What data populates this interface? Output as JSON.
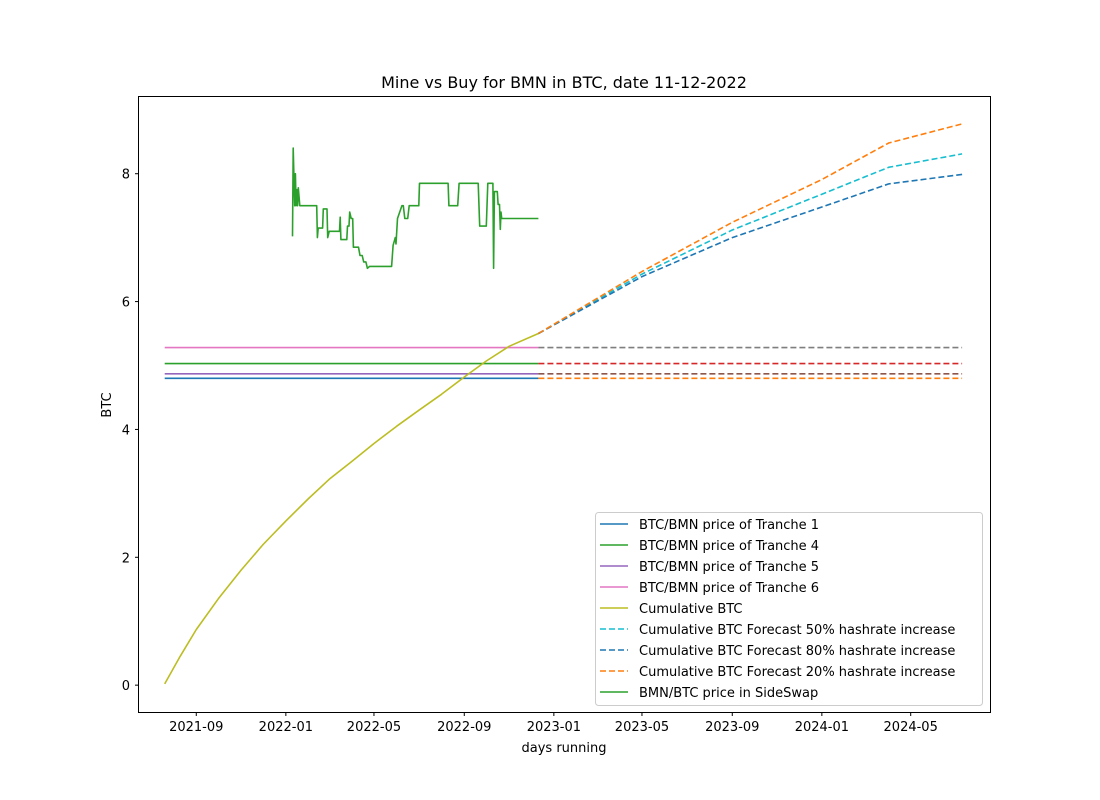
{
  "chart_data": {
    "type": "line",
    "title": "Mine vs Buy for BMN in BTC, date 11-12-2022",
    "xlabel": "days running",
    "ylabel": "BTC",
    "xlim": [
      "2021-06-15",
      "2024-08-17"
    ],
    "ylim": [
      -0.42,
      9.2
    ],
    "x_ticks": [
      "2021-09",
      "2022-01",
      "2022-05",
      "2022-09",
      "2023-01",
      "2023-05",
      "2023-09",
      "2024-01",
      "2024-05"
    ],
    "y_ticks": [
      0,
      2,
      4,
      6,
      8
    ],
    "grid": false,
    "legend_position": "bottom-right",
    "legend": [
      "BTC/BMN price of Tranche 1",
      "BTC/BMN price of Tranche 4",
      "BTC/BMN price of Tranche 5",
      "BTC/BMN price of Tranche 6",
      "Cumulative BTC",
      "Cumulative BTC Forecast 50% hashrate increase",
      "Cumulative BTC Forecast 80% hashrate increase",
      "Cumulative BTC Forecast 20% hashrate increase",
      "BMN/BTC price in SideSwap"
    ],
    "series": [
      {
        "name": "BTC/BMN price of Tranche 1",
        "color": "#1f77b4",
        "style": "solid",
        "legend": true,
        "points": [
          [
            "2021-07-20",
            4.8
          ],
          [
            "2022-12-11",
            4.8
          ]
        ]
      },
      {
        "name": "BTC/BMN price of Tranche 4",
        "color": "#2ca02c",
        "style": "solid",
        "legend": true,
        "points": [
          [
            "2021-07-20",
            5.03
          ],
          [
            "2022-12-11",
            5.03
          ]
        ]
      },
      {
        "name": "BTC/BMN price of Tranche 5",
        "color": "#9467bd",
        "style": "solid",
        "legend": true,
        "points": [
          [
            "2021-07-20",
            4.87
          ],
          [
            "2022-12-11",
            4.87
          ]
        ]
      },
      {
        "name": "BTC/BMN price of Tranche 6",
        "color": "#e377c2",
        "style": "solid",
        "legend": true,
        "points": [
          [
            "2021-07-20",
            5.28
          ],
          [
            "2022-12-11",
            5.28
          ]
        ]
      },
      {
        "name": "",
        "color": "#ff7f0e",
        "style": "dashed",
        "legend": false,
        "points": [
          [
            "2022-12-11",
            4.8
          ],
          [
            "2024-07-10",
            4.8
          ]
        ]
      },
      {
        "name": "",
        "color": "#8c564b",
        "style": "dashed",
        "legend": false,
        "points": [
          [
            "2022-12-11",
            4.87
          ],
          [
            "2024-07-10",
            4.87
          ]
        ]
      },
      {
        "name": "",
        "color": "#d62728",
        "style": "dashed",
        "legend": false,
        "points": [
          [
            "2022-12-11",
            5.03
          ],
          [
            "2024-07-10",
            5.03
          ]
        ]
      },
      {
        "name": "",
        "color": "#7f7f7f",
        "style": "dashed",
        "legend": false,
        "points": [
          [
            "2022-12-11",
            5.28
          ],
          [
            "2024-07-10",
            5.28
          ]
        ]
      },
      {
        "name": "Cumulative BTC",
        "color": "#bcbd22",
        "style": "solid",
        "legend": true,
        "points": [
          [
            "2021-07-20",
            0.02
          ],
          [
            "2021-08-10",
            0.45
          ],
          [
            "2021-09-01",
            0.87
          ],
          [
            "2021-10-01",
            1.35
          ],
          [
            "2021-11-01",
            1.8
          ],
          [
            "2021-12-01",
            2.2
          ],
          [
            "2022-01-01",
            2.57
          ],
          [
            "2022-02-01",
            2.92
          ],
          [
            "2022-03-01",
            3.22
          ],
          [
            "2022-04-01",
            3.5
          ],
          [
            "2022-05-01",
            3.78
          ],
          [
            "2022-06-01",
            4.05
          ],
          [
            "2022-07-01",
            4.3
          ],
          [
            "2022-08-01",
            4.55
          ],
          [
            "2022-09-01",
            4.82
          ],
          [
            "2022-10-01",
            5.07
          ],
          [
            "2022-11-01",
            5.3
          ],
          [
            "2022-12-11",
            5.5
          ]
        ]
      },
      {
        "name": "Cumulative BTC Forecast 50% hashrate increase",
        "color": "#17becf",
        "style": "dashed",
        "legend": true,
        "points": [
          [
            "2022-12-11",
            5.5
          ],
          [
            "2023-05-01",
            6.43
          ],
          [
            "2023-09-01",
            7.12
          ],
          [
            "2024-01-01",
            7.68
          ],
          [
            "2024-04-01",
            8.1
          ],
          [
            "2024-07-10",
            8.31
          ]
        ]
      },
      {
        "name": "Cumulative BTC Forecast 80% hashrate increase",
        "color": "#1f77b4",
        "style": "dashed",
        "legend": true,
        "points": [
          [
            "2022-12-11",
            5.5
          ],
          [
            "2023-05-01",
            6.39
          ],
          [
            "2023-09-01",
            7.0
          ],
          [
            "2024-01-01",
            7.48
          ],
          [
            "2024-04-01",
            7.84
          ],
          [
            "2024-07-10",
            7.99
          ]
        ]
      },
      {
        "name": "Cumulative BTC Forecast 20% hashrate increase",
        "color": "#ff7f0e",
        "style": "dashed",
        "legend": true,
        "points": [
          [
            "2022-12-11",
            5.5
          ],
          [
            "2023-05-01",
            6.47
          ],
          [
            "2023-09-01",
            7.24
          ],
          [
            "2024-01-01",
            7.91
          ],
          [
            "2024-04-01",
            8.48
          ],
          [
            "2024-07-10",
            8.78
          ]
        ]
      },
      {
        "name": "BMN/BTC price in SideSwap",
        "color": "#2ca02c",
        "style": "solid",
        "legend": true,
        "points": [
          [
            "2022-01-10",
            7.02
          ],
          [
            "2022-01-11",
            8.4
          ],
          [
            "2022-01-13",
            7.5
          ],
          [
            "2022-01-14",
            8.0
          ],
          [
            "2022-01-15",
            7.5
          ],
          [
            "2022-01-16",
            7.75
          ],
          [
            "2022-01-17",
            7.5
          ],
          [
            "2022-01-18",
            7.78
          ],
          [
            "2022-01-20",
            7.5
          ],
          [
            "2022-02-12",
            7.5
          ],
          [
            "2022-02-13",
            7.0
          ],
          [
            "2022-02-14",
            7.15
          ],
          [
            "2022-02-20",
            7.15
          ],
          [
            "2022-02-21",
            7.45
          ],
          [
            "2022-02-26",
            7.45
          ],
          [
            "2022-02-27",
            7.0
          ],
          [
            "2022-03-01",
            7.1
          ],
          [
            "2022-03-15",
            7.1
          ],
          [
            "2022-03-16",
            7.32
          ],
          [
            "2022-03-17",
            6.97
          ],
          [
            "2022-03-25",
            6.97
          ],
          [
            "2022-03-26",
            7.18
          ],
          [
            "2022-03-28",
            7.18
          ],
          [
            "2022-03-29",
            7.4
          ],
          [
            "2022-03-31",
            7.3
          ],
          [
            "2022-04-02",
            7.3
          ],
          [
            "2022-04-03",
            6.85
          ],
          [
            "2022-04-10",
            6.85
          ],
          [
            "2022-04-12",
            6.72
          ],
          [
            "2022-04-15",
            6.72
          ],
          [
            "2022-04-17",
            6.62
          ],
          [
            "2022-04-20",
            6.62
          ],
          [
            "2022-04-22",
            6.52
          ],
          [
            "2022-04-25",
            6.55
          ],
          [
            "2022-05-25",
            6.55
          ],
          [
            "2022-05-27",
            6.88
          ],
          [
            "2022-05-30",
            7.0
          ],
          [
            "2022-05-31",
            6.9
          ],
          [
            "2022-06-02",
            7.3
          ],
          [
            "2022-06-05",
            7.4
          ],
          [
            "2022-06-08",
            7.5
          ],
          [
            "2022-06-10",
            7.5
          ],
          [
            "2022-06-12",
            7.3
          ],
          [
            "2022-06-16",
            7.3
          ],
          [
            "2022-06-18",
            7.5
          ],
          [
            "2022-07-01",
            7.5
          ],
          [
            "2022-07-02",
            7.85
          ],
          [
            "2022-08-10",
            7.85
          ],
          [
            "2022-08-11",
            7.5
          ],
          [
            "2022-08-23",
            7.5
          ],
          [
            "2022-08-25",
            7.85
          ],
          [
            "2022-09-20",
            7.85
          ],
          [
            "2022-09-22",
            7.18
          ],
          [
            "2022-10-01",
            7.18
          ],
          [
            "2022-10-03",
            7.85
          ],
          [
            "2022-10-10",
            7.85
          ],
          [
            "2022-10-11",
            6.52
          ],
          [
            "2022-10-12",
            7.72
          ],
          [
            "2022-10-16",
            7.72
          ],
          [
            "2022-10-17",
            7.52
          ],
          [
            "2022-10-19",
            7.52
          ],
          [
            "2022-10-20",
            7.13
          ],
          [
            "2022-10-21",
            7.4
          ],
          [
            "2022-10-22",
            7.3
          ],
          [
            "2022-12-11",
            7.3
          ]
        ]
      }
    ]
  }
}
